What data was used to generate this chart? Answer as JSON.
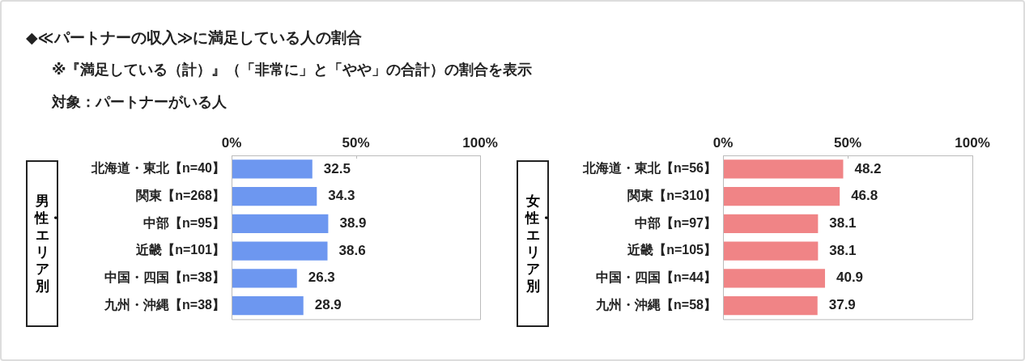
{
  "chart_data": [
    {
      "type": "bar",
      "orientation": "horizontal",
      "title": "◆≪パートナーの収入≫に満足している人の割合",
      "subtitle": "※『満足している（計）』（「非常に」と「やや」の合計）の割合を表示",
      "annotations": [
        "対象：パートナーがいる人"
      ],
      "ylabel": "男性・エリア別",
      "categories": [
        "北海道・東北【n=40】",
        "関東【n=268】",
        "中部【n=95】",
        "近畿【n=101】",
        "中国・四国【n=38】",
        "九州・沖縄【n=38】"
      ],
      "values": [
        32.5,
        34.3,
        38.9,
        38.6,
        26.3,
        28.9
      ],
      "color": "#6d97f0",
      "data_labels": true,
      "xlim": [
        0,
        100
      ],
      "xticks": [
        {
          "value": 0,
          "label": "0%"
        },
        {
          "value": 50,
          "label": "50%"
        },
        {
          "value": 100,
          "label": "100%"
        }
      ],
      "grid": false,
      "legend": false
    },
    {
      "type": "bar",
      "orientation": "horizontal",
      "ylabel": "女性・エリア別",
      "categories": [
        "北海道・東北【n=56】",
        "関東【n=310】",
        "中部【n=97】",
        "近畿【n=105】",
        "中国・四国【n=44】",
        "九州・沖縄【n=58】"
      ],
      "values": [
        48.2,
        46.8,
        38.1,
        38.1,
        40.9,
        37.9
      ],
      "color": "#f08486",
      "data_labels": true,
      "xlim": [
        0,
        100
      ],
      "xticks": [
        {
          "value": 0,
          "label": "0%"
        },
        {
          "value": 50,
          "label": "50%"
        },
        {
          "value": 100,
          "label": "100%"
        }
      ],
      "grid": false,
      "legend": false
    }
  ]
}
